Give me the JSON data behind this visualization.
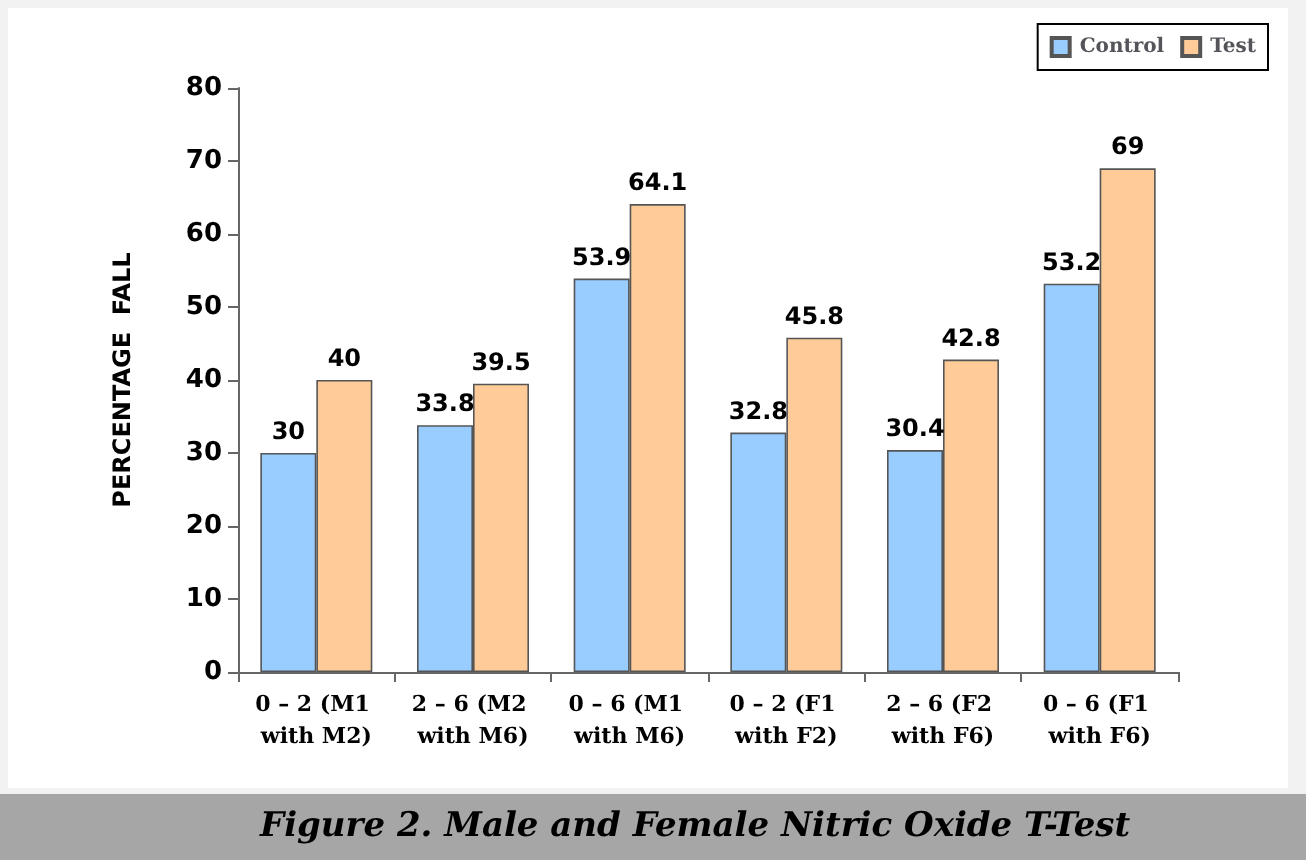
{
  "chart_data": {
    "type": "bar",
    "title": "Figure 2. Male and Female Nitric Oxide T-Test",
    "ylabel": "PERCENTAGE  FALL",
    "categories": [
      "0 – 2 (M1 with M2)",
      "2 – 6 (M2 with M6)",
      "0 – 6 (M1 with M6)",
      "0 – 2 (F1 with F2)",
      "2 – 6 (F2 with F6)",
      "0 – 6 (F1 with F6)"
    ],
    "series": [
      {
        "name": "Control",
        "color": "#99ccff",
        "values": [
          30,
          33.8,
          53.9,
          32.8,
          30.4,
          53.2
        ]
      },
      {
        "name": "Test",
        "color": "#ffcc99",
        "values": [
          40,
          39.5,
          64.1,
          45.8,
          42.8,
          69
        ]
      }
    ],
    "ylim": [
      0,
      80
    ],
    "yticks": [
      0,
      10,
      20,
      30,
      40,
      50,
      60,
      70,
      80
    ],
    "grid": false,
    "legend": "top right",
    "data_labels": true
  }
}
